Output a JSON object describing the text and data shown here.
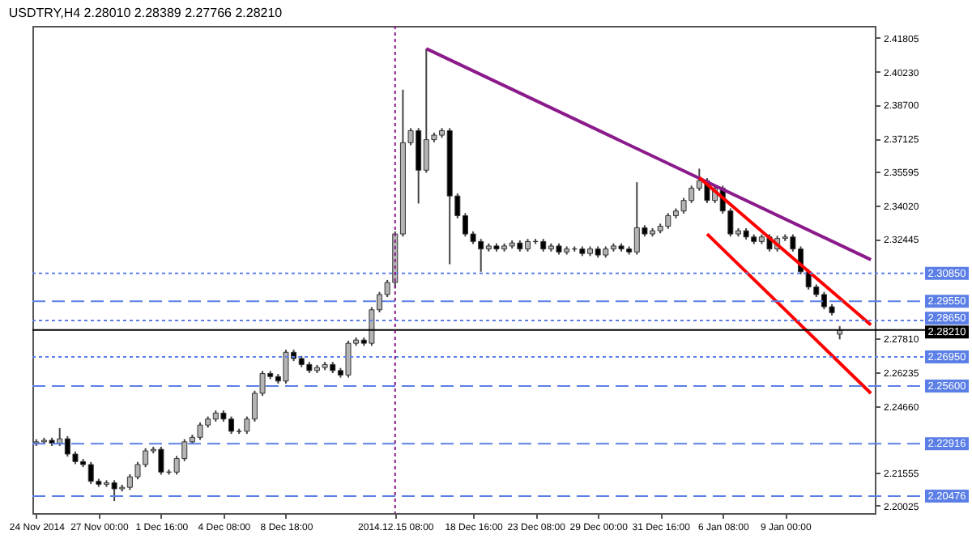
{
  "chart_data": {
    "type": "candlestick",
    "title": "USDTRY,H4 2.28010 2.28389 2.27766 2.28210",
    "categories": [
      "24 Nov 2014",
      null,
      null,
      null,
      null,
      null,
      null,
      null,
      "27 Nov 00:00",
      null,
      null,
      null,
      null,
      null,
      null,
      null,
      "1 Dec 16:00",
      null,
      null,
      null,
      null,
      null,
      null,
      null,
      "4 Dec 08:00",
      null,
      null,
      null,
      null,
      null,
      null,
      null,
      "8 Dec 18:00",
      null,
      null,
      null,
      null,
      null,
      null,
      null,
      null,
      null,
      null,
      null,
      null,
      null,
      "2014.12.15 08:00",
      null,
      null,
      null,
      null,
      null,
      null,
      null,
      null,
      null,
      "18 Dec 16:00",
      null,
      null,
      null,
      null,
      null,
      null,
      null,
      "23 Dec 08:00",
      null,
      null,
      null,
      null,
      null,
      null,
      null,
      "29 Dec 00:00",
      null,
      null,
      null,
      null,
      null,
      null,
      null,
      "31 Dec 16:00",
      null,
      null,
      null,
      null,
      null,
      null,
      null,
      "6 Jan 08:00",
      null,
      null,
      null,
      null,
      null,
      null,
      null,
      "9 Jan 00:00",
      null,
      null,
      null,
      null,
      null,
      null,
      null,
      null,
      null,
      null,
      null
    ],
    "ohlc": [
      [
        2.2293,
        2.2312,
        2.2281,
        2.23
      ],
      [
        2.23,
        2.2319,
        2.2288,
        2.2307
      ],
      [
        2.2307,
        2.2319,
        2.2281,
        2.2293
      ],
      [
        2.2293,
        2.2364,
        2.2281,
        2.2314
      ],
      [
        2.2314,
        2.2326,
        2.2231,
        2.2243
      ],
      [
        2.2243,
        2.2255,
        2.2196,
        2.2208
      ],
      [
        2.2208,
        2.222,
        2.2182,
        2.2194
      ],
      [
        2.2194,
        2.2206,
        2.2104,
        2.2116
      ],
      [
        2.2116,
        2.2128,
        2.209,
        2.2102
      ],
      [
        2.2102,
        2.2121,
        2.209,
        2.2109
      ],
      [
        2.2109,
        2.2121,
        2.2024,
        2.2081
      ],
      [
        2.2081,
        2.21,
        2.2069,
        2.2088
      ],
      [
        2.2088,
        2.2149,
        2.2076,
        2.2137
      ],
      [
        2.2137,
        2.2206,
        2.2125,
        2.2194
      ],
      [
        2.2194,
        2.227,
        2.2182,
        2.2258
      ],
      [
        2.2258,
        2.2277,
        2.2246,
        2.2265
      ],
      [
        2.2265,
        2.2277,
        2.2147,
        2.2159
      ],
      [
        2.2159,
        2.2171,
        2.2147,
        2.2159
      ],
      [
        2.2159,
        2.2234,
        2.2147,
        2.2222
      ],
      [
        2.2222,
        2.2312,
        2.221,
        2.23
      ],
      [
        2.23,
        2.2333,
        2.2288,
        2.2321
      ],
      [
        2.2321,
        2.239,
        2.2309,
        2.2378
      ],
      [
        2.2378,
        2.2418,
        2.2366,
        2.2406
      ],
      [
        2.2406,
        2.2446,
        2.2394,
        2.2434
      ],
      [
        2.2434,
        2.2446,
        2.2394,
        2.2406
      ],
      [
        2.2406,
        2.2418,
        2.2337,
        2.2349
      ],
      [
        2.2349,
        2.2361,
        2.2337,
        2.2349
      ],
      [
        2.2349,
        2.2418,
        2.2337,
        2.2406
      ],
      [
        2.2406,
        2.2538,
        2.2394,
        2.2526
      ],
      [
        2.2526,
        2.263,
        2.2514,
        2.2618
      ],
      [
        2.2618,
        2.263,
        2.2592,
        2.2604
      ],
      [
        2.2604,
        2.2616,
        2.2571,
        2.2583
      ],
      [
        2.2583,
        2.2729,
        2.2571,
        2.2717
      ],
      [
        2.2717,
        2.2729,
        2.2676,
        2.2688
      ],
      [
        2.2688,
        2.27,
        2.2648,
        2.266
      ],
      [
        2.266,
        2.2672,
        2.262,
        2.2632
      ],
      [
        2.2632,
        2.2658,
        2.262,
        2.2646
      ],
      [
        2.2646,
        2.2672,
        2.2634,
        2.266
      ],
      [
        2.266,
        2.2672,
        2.262,
        2.2632
      ],
      [
        2.2632,
        2.2644,
        2.2599,
        2.2611
      ],
      [
        2.2611,
        2.2771,
        2.2599,
        2.2759
      ],
      [
        2.2759,
        2.2786,
        2.2747,
        2.2774
      ],
      [
        2.2774,
        2.2786,
        2.2747,
        2.2759
      ],
      [
        2.2759,
        2.2927,
        2.2747,
        2.2915
      ],
      [
        2.2915,
        2.2998,
        2.2903,
        2.2986
      ],
      [
        2.2986,
        2.3054,
        2.2974,
        2.3042
      ],
      [
        2.3042,
        2.328,
        2.3014,
        2.3268
      ],
      [
        2.3268,
        2.394,
        2.3256,
        2.3693
      ],
      [
        2.3693,
        2.3761,
        2.3681,
        2.3749
      ],
      [
        2.3749,
        2.3761,
        2.341,
        2.3565
      ],
      [
        2.3565,
        2.4131,
        2.3553,
        2.3707
      ],
      [
        2.3707,
        2.374,
        2.3695,
        2.3728
      ],
      [
        2.3728,
        2.3761,
        2.3716,
        2.3749
      ],
      [
        2.3749,
        2.3761,
        2.3127,
        2.3445
      ],
      [
        2.3445,
        2.3457,
        2.3341,
        2.3353
      ],
      [
        2.3353,
        2.3365,
        2.3256,
        2.3268
      ],
      [
        2.3268,
        2.328,
        2.3221,
        2.3233
      ],
      [
        2.3233,
        2.3245,
        2.3092,
        2.3198
      ],
      [
        2.3198,
        2.3224,
        2.3186,
        2.3212
      ],
      [
        2.3212,
        2.3224,
        2.3186,
        2.3198
      ],
      [
        2.3198,
        2.3224,
        2.3186,
        2.3212
      ],
      [
        2.3212,
        2.3238,
        2.32,
        2.3226
      ],
      [
        2.3226,
        2.3238,
        2.3186,
        2.3198
      ],
      [
        2.3198,
        2.3245,
        2.3186,
        2.3233
      ],
      [
        2.3233,
        2.3245,
        2.3221,
        2.3233
      ],
      [
        2.3233,
        2.3245,
        2.3186,
        2.3198
      ],
      [
        2.3198,
        2.3224,
        2.3186,
        2.3212
      ],
      [
        2.3212,
        2.3224,
        2.3172,
        2.3184
      ],
      [
        2.3184,
        2.321,
        2.3172,
        2.3198
      ],
      [
        2.3198,
        2.321,
        2.3186,
        2.3198
      ],
      [
        2.3198,
        2.321,
        2.3165,
        2.3177
      ],
      [
        2.3177,
        2.321,
        2.3165,
        2.3198
      ],
      [
        2.3198,
        2.321,
        2.3158,
        2.317
      ],
      [
        2.317,
        2.321,
        2.3158,
        2.3198
      ],
      [
        2.3198,
        2.3224,
        2.3186,
        2.3212
      ],
      [
        2.3212,
        2.3224,
        2.3186,
        2.3198
      ],
      [
        2.3198,
        2.321,
        2.3172,
        2.3184
      ],
      [
        2.3184,
        2.3509,
        2.3172,
        2.3297
      ],
      [
        2.3297,
        2.3309,
        2.3256,
        2.3268
      ],
      [
        2.3268,
        2.3295,
        2.3256,
        2.3283
      ],
      [
        2.3283,
        2.3316,
        2.3271,
        2.3304
      ],
      [
        2.3304,
        2.3365,
        2.3292,
        2.3353
      ],
      [
        2.3353,
        2.3387,
        2.3341,
        2.3375
      ],
      [
        2.3375,
        2.3436,
        2.3363,
        2.3424
      ],
      [
        2.3424,
        2.3493,
        2.3412,
        2.3481
      ],
      [
        2.3481,
        2.3572,
        2.3469,
        2.3516
      ],
      [
        2.3516,
        2.3528,
        2.3412,
        2.3424
      ],
      [
        2.3424,
        2.3493,
        2.3412,
        2.3481
      ],
      [
        2.3481,
        2.3493,
        2.3363,
        2.3375
      ],
      [
        2.3375,
        2.3387,
        2.3256,
        2.3268
      ],
      [
        2.3268,
        2.3295,
        2.3256,
        2.3283
      ],
      [
        2.3283,
        2.3295,
        2.3242,
        2.3254
      ],
      [
        2.3254,
        2.3266,
        2.3221,
        2.3233
      ],
      [
        2.3233,
        2.3266,
        2.3221,
        2.3254
      ],
      [
        2.3254,
        2.3266,
        2.3186,
        2.3198
      ],
      [
        2.3198,
        2.3259,
        2.3186,
        2.3247
      ],
      [
        2.3247,
        2.3266,
        2.3235,
        2.3254
      ],
      [
        2.3254,
        2.3266,
        2.3186,
        2.3198
      ],
      [
        2.3198,
        2.321,
        2.308,
        2.3092
      ],
      [
        2.3092,
        2.3104,
        2.3009,
        2.3021
      ],
      [
        2.3021,
        2.3033,
        2.2974,
        2.2986
      ],
      [
        2.2986,
        2.2998,
        2.2917,
        2.2929
      ],
      [
        2.2929,
        2.2941,
        2.2889,
        2.2901
      ],
      [
        2.2801,
        2.2839,
        2.2777,
        2.2821
      ],
      null,
      null,
      null,
      null
    ],
    "series": [
      {
        "type": "line",
        "color": "#8b1a8b",
        "values": [
          null,
          null,
          null,
          null,
          null,
          null,
          null,
          null,
          null,
          null,
          null,
          null,
          null,
          null,
          null,
          null,
          null,
          null,
          null,
          null,
          null,
          null,
          null,
          null,
          null,
          null,
          null,
          null,
          null,
          null,
          null,
          null,
          null,
          null,
          null,
          null,
          null,
          null,
          null,
          null,
          null,
          null,
          null,
          null,
          null,
          null,
          null,
          null,
          null,
          null,
          2.4131,
          null,
          null,
          null,
          null,
          null,
          null,
          null,
          null,
          null,
          null,
          null,
          null,
          null,
          null,
          null,
          null,
          null,
          null,
          null,
          null,
          null,
          null,
          null,
          null,
          null,
          null,
          null,
          null,
          null,
          null,
          null,
          null,
          null,
          null,
          null,
          null,
          null,
          null,
          null,
          null,
          null,
          null,
          null,
          null,
          null,
          null,
          null,
          null,
          null,
          null,
          null,
          null,
          null,
          null,
          null,
          null,
          2.3148
        ]
      },
      {
        "type": "line",
        "color": "#ff0000",
        "values": [
          null,
          null,
          null,
          null,
          null,
          null,
          null,
          null,
          null,
          null,
          null,
          null,
          null,
          null,
          null,
          null,
          null,
          null,
          null,
          null,
          null,
          null,
          null,
          null,
          null,
          null,
          null,
          null,
          null,
          null,
          null,
          null,
          null,
          null,
          null,
          null,
          null,
          null,
          null,
          null,
          null,
          null,
          null,
          null,
          null,
          null,
          null,
          null,
          null,
          null,
          null,
          null,
          null,
          null,
          null,
          null,
          null,
          null,
          null,
          null,
          null,
          null,
          null,
          null,
          null,
          null,
          null,
          null,
          null,
          null,
          null,
          null,
          null,
          null,
          null,
          null,
          null,
          null,
          null,
          null,
          null,
          null,
          null,
          null,
          null,
          2.353,
          null,
          null,
          null,
          null,
          null,
          null,
          null,
          null,
          null,
          null,
          null,
          null,
          null,
          null,
          null,
          null,
          null,
          null,
          null,
          null,
          null,
          2.2844
        ]
      },
      {
        "type": "line",
        "color": "#ff0000",
        "values": [
          null,
          null,
          null,
          null,
          null,
          null,
          null,
          null,
          null,
          null,
          null,
          null,
          null,
          null,
          null,
          null,
          null,
          null,
          null,
          null,
          null,
          null,
          null,
          null,
          null,
          null,
          null,
          null,
          null,
          null,
          null,
          null,
          null,
          null,
          null,
          null,
          null,
          null,
          null,
          null,
          null,
          null,
          null,
          null,
          null,
          null,
          null,
          null,
          null,
          null,
          null,
          null,
          null,
          null,
          null,
          null,
          null,
          null,
          null,
          null,
          null,
          null,
          null,
          null,
          null,
          null,
          null,
          null,
          null,
          null,
          null,
          null,
          null,
          null,
          null,
          null,
          null,
          null,
          null,
          null,
          null,
          null,
          null,
          null,
          null,
          null,
          2.3268,
          null,
          null,
          null,
          null,
          null,
          null,
          null,
          null,
          null,
          null,
          null,
          null,
          null,
          null,
          null,
          null,
          null,
          null,
          null,
          null,
          2.2526
        ]
      }
    ],
    "ylim": [
      2.1968,
      2.4237
    ],
    "yticks": [
      2.20025,
      2.21555,
      {
        "value": 2.2466,
        "label": "2.24660"
      },
      2.26235,
      {
        "value": 2.2781,
        "label": "2.27810"
      },
      2.32445,
      {
        "value": 2.3402,
        "label": "2.34020"
      },
      2.35595,
      2.37125,
      {
        "value": 2.387,
        "label": "2.38700"
      },
      {
        "value": 2.4023,
        "label": "2.40230"
      },
      2.41805
    ],
    "ref_lines": [
      {
        "axis": "y",
        "value": 2.3085,
        "label": "2.30850",
        "color": "#5b7fe6",
        "line_style": "dotted"
      },
      {
        "axis": "y",
        "value": 2.2955,
        "label": "2.29550",
        "color": "#5b7fe6",
        "line_style": "dashed"
      },
      {
        "axis": "y",
        "value": 2.2865,
        "label": "2.28650",
        "color": "#5b7fe6",
        "line_style": "dotted"
      },
      {
        "axis": "y",
        "value": 2.2821,
        "label": "2.28210",
        "color": "#000000",
        "line_style": "solid"
      },
      {
        "axis": "y",
        "value": 2.2695,
        "label": "2.26950",
        "color": "#5b7fe6",
        "line_style": "dotted"
      },
      {
        "axis": "y",
        "value": 2.256,
        "label": "2.25600",
        "color": "#5b7fe6",
        "line_style": "dashed"
      },
      {
        "axis": "y",
        "value": 2.22916,
        "label": "2.22916",
        "color": "#5b7fe6",
        "line_style": "dashed"
      },
      {
        "axis": "y",
        "value": 2.20476,
        "label": "2.20476",
        "color": "#5b7fe6",
        "line_style": "dashed"
      },
      {
        "axis": "x",
        "value": "2014.12.15 08:00",
        "color": "#8b1a8b",
        "line_style": "dotted"
      }
    ],
    "grid": false
  }
}
